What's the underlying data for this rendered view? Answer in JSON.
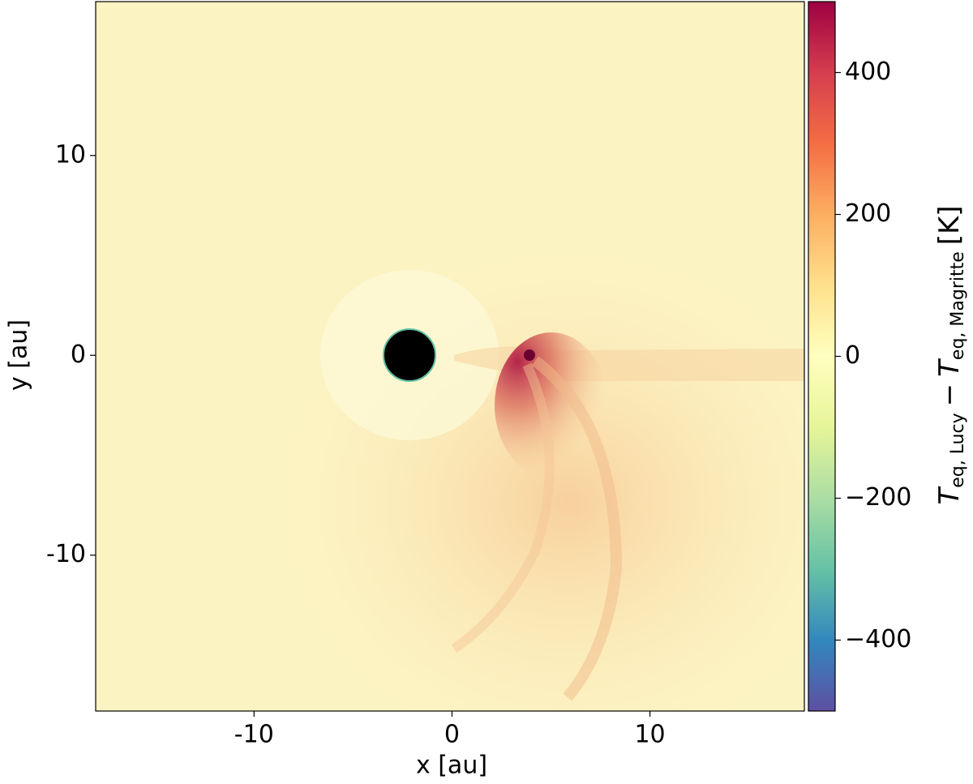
{
  "chart_data": {
    "type": "heatmap",
    "xlabel": "x [au]",
    "ylabel": "y [au]",
    "xlim": [
      -18,
      17.8
    ],
    "ylim": [
      -17.8,
      17.7
    ],
    "xticks": [
      -10,
      0,
      10
    ],
    "yticks": [
      -10,
      0,
      10
    ],
    "clim": [
      -500,
      500
    ],
    "cticks": [
      {
        "value": -400,
        "label": "−400"
      },
      {
        "value": -200,
        "label": "−200"
      },
      0,
      200,
      400
    ],
    "colormap": [
      "#5e4fa2",
      "#3288bd",
      "#66c2a5",
      "#abdda4",
      "#e6f598",
      "#ffffbf",
      "#fee08b",
      "#fdae61",
      "#f46d43",
      "#d53e4f",
      "#9e0142"
    ],
    "colorbar_label": {
      "symbol": "T",
      "sub1": "eq, Lucy",
      "minus": "−",
      "sub2": "eq, Magritte",
      "unit": "[K]"
    }
  }
}
